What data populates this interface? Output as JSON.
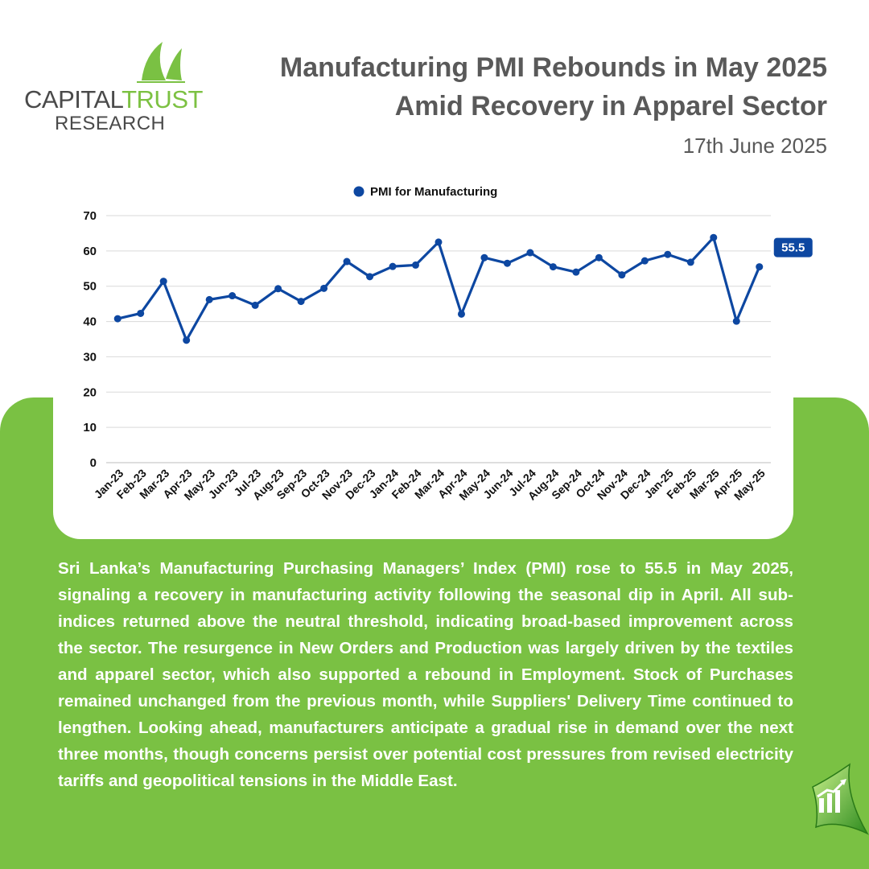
{
  "brand": {
    "name_part1": "CAPITAL",
    "name_part2": "TRUST",
    "name_line2": "RESEARCH",
    "green": "#7ac143",
    "blue": "#0d47a1"
  },
  "header": {
    "title_line1": "Manufacturing PMI Rebounds in May 2025",
    "title_line2": "Amid Recovery in Apparel Sector",
    "date": "17th June 2025"
  },
  "chart_data": {
    "type": "line",
    "title": "",
    "xlabel": "",
    "ylabel": "",
    "ylim": [
      0,
      70
    ],
    "yticks": [
      0,
      10,
      20,
      30,
      40,
      50,
      60,
      70
    ],
    "grid": true,
    "legend_position": "top-center",
    "categories": [
      "Jan-23",
      "Feb-23",
      "Mar-23",
      "Apr-23",
      "May-23",
      "Jun-23",
      "Jul-23",
      "Aug-23",
      "Sep-23",
      "Oct-23",
      "Nov-23",
      "Dec-23",
      "Jan-24",
      "Feb-24",
      "Mar-24",
      "Apr-24",
      "May-24",
      "Jun-24",
      "Jul-24",
      "Aug-24",
      "Sep-24",
      "Oct-24",
      "Nov-24",
      "Dec-24",
      "Jan-25",
      "Feb-25",
      "Mar-25",
      "Apr-25",
      "May-25"
    ],
    "series": [
      {
        "name": "PMI for Manufacturing",
        "color": "#0d47a1",
        "values": [
          40.8,
          42.3,
          51.4,
          34.7,
          46.2,
          47.3,
          44.6,
          49.3,
          45.7,
          49.4,
          57.0,
          52.7,
          55.6,
          56.0,
          62.5,
          42.1,
          58.1,
          56.5,
          59.5,
          55.5,
          54.0,
          58.1,
          53.2,
          57.2,
          59.0,
          56.8,
          63.8,
          40.1,
          55.5
        ]
      }
    ],
    "annotation": "55.5"
  },
  "body": {
    "paragraph": "Sri Lanka’s Manufacturing Purchasing Managers’ Index (PMI) rose to 55.5 in May 2025, signaling a recovery in manufacturing activity following the seasonal dip in April. All sub-indices returned above the neutral threshold, indicating broad-based improvement across the sector. The resurgence in New Orders and Production was largely driven by the textiles and apparel sector, which also supported a rebound in Employment. Stock of Purchases remained unchanged from the previous month, while Suppliers' Delivery Time continued to lengthen. Looking ahead, manufacturers anticipate a gradual rise in demand over the next three months, though concerns persist over potential cost pressures from revised electricity tariffs and geopolitical tensions in the Middle East."
  },
  "icons": {
    "logo": "sail-logo-icon",
    "corner": "growth-chart-icon"
  }
}
